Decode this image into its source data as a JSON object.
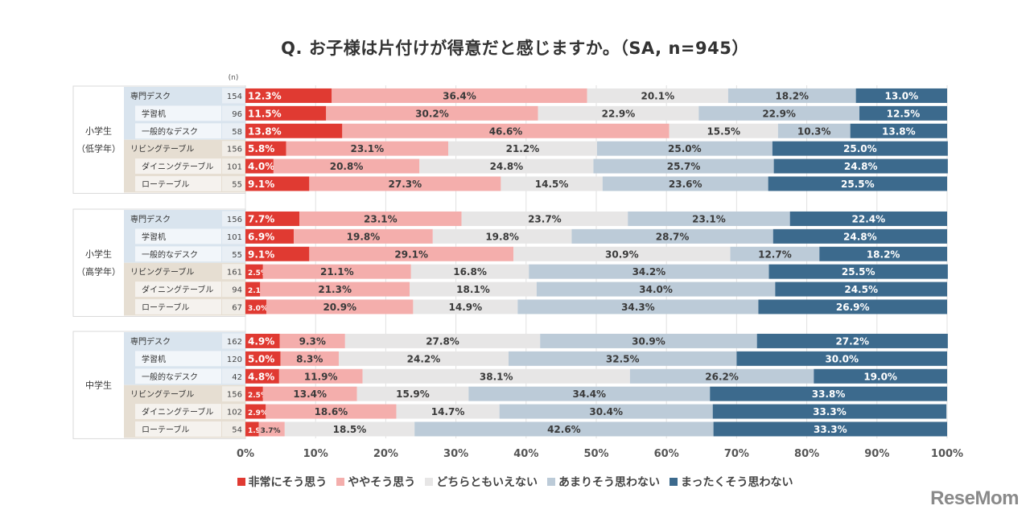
{
  "title": "Q. お子様は片付けが得意だと感じますか。（SA, n=945）",
  "n_header": "(n)",
  "logo": "ReseMom",
  "chart_data": {
    "type": "bar",
    "orientation": "horizontal",
    "stacked": "percent",
    "title": "Q. お子様は片付けが得意だと感じますか。（SA, n=945）",
    "xlabel": "",
    "ylabel": "",
    "xlim": [
      0,
      100
    ],
    "x_ticks": [
      "0%",
      "10%",
      "20%",
      "30%",
      "40%",
      "50%",
      "60%",
      "70%",
      "80%",
      "90%",
      "100%"
    ],
    "grid": true,
    "legend_position": "bottom",
    "legend": [
      {
        "name": "非常にそう思う",
        "color": "#e03a32"
      },
      {
        "name": "ややそう思う",
        "color": "#f4aeac"
      },
      {
        "name": "どちらともいえない",
        "color": "#e7e6e6"
      },
      {
        "name": "あまりそう思わない",
        "color": "#bccbd8"
      },
      {
        "name": "まったくそう思わない",
        "color": "#3c6a8d"
      }
    ],
    "label_colors": [
      "light",
      "dark",
      "dark",
      "dark",
      "light"
    ],
    "groups": [
      {
        "name": "小学生（低学年）",
        "name_lines": [
          "小学生",
          "（低学年）"
        ],
        "rows": [
          {
            "label": "専門デスク",
            "indent": false,
            "kind": "desk",
            "n": 154,
            "values": [
              12.3,
              36.4,
              20.1,
              18.2,
              13.0
            ]
          },
          {
            "label": "学習机",
            "indent": true,
            "kind": "desk",
            "n": 96,
            "values": [
              11.5,
              30.2,
              22.9,
              22.9,
              12.5
            ]
          },
          {
            "label": "一般的なデスク",
            "indent": true,
            "kind": "desk",
            "n": 58,
            "values": [
              13.8,
              46.6,
              15.5,
              10.3,
              13.8
            ]
          },
          {
            "label": "リビングテーブル",
            "indent": false,
            "kind": "table",
            "n": 156,
            "values": [
              5.8,
              23.1,
              21.2,
              25.0,
              25.0
            ]
          },
          {
            "label": "ダイニングテーブル",
            "indent": true,
            "kind": "table",
            "n": 101,
            "values": [
              4.0,
              20.8,
              24.8,
              25.7,
              24.8
            ]
          },
          {
            "label": "ローテーブル",
            "indent": true,
            "kind": "table",
            "n": 55,
            "values": [
              9.1,
              27.3,
              14.5,
              23.6,
              25.5
            ]
          }
        ]
      },
      {
        "name": "小学生（高学年）",
        "name_lines": [
          "小学生",
          "（高学年）"
        ],
        "rows": [
          {
            "label": "専門デスク",
            "indent": false,
            "kind": "desk",
            "n": 156,
            "values": [
              7.7,
              23.1,
              23.7,
              23.1,
              22.4
            ]
          },
          {
            "label": "学習机",
            "indent": true,
            "kind": "desk",
            "n": 101,
            "values": [
              6.9,
              19.8,
              19.8,
              28.7,
              24.8
            ]
          },
          {
            "label": "一般的なデスク",
            "indent": true,
            "kind": "desk",
            "n": 55,
            "values": [
              9.1,
              29.1,
              30.9,
              12.7,
              18.2
            ]
          },
          {
            "label": "リビングテーブル",
            "indent": false,
            "kind": "table",
            "n": 161,
            "values": [
              2.5,
              21.1,
              16.8,
              34.2,
              25.5
            ]
          },
          {
            "label": "ダイニングテーブル",
            "indent": true,
            "kind": "table",
            "n": 94,
            "values": [
              2.1,
              21.3,
              18.1,
              34.0,
              24.5
            ]
          },
          {
            "label": "ローテーブル",
            "indent": true,
            "kind": "table",
            "n": 67,
            "values": [
              3.0,
              20.9,
              14.9,
              34.3,
              26.9
            ]
          }
        ]
      },
      {
        "name": "中学生",
        "name_lines": [
          "中学生"
        ],
        "rows": [
          {
            "label": "専門デスク",
            "indent": false,
            "kind": "desk",
            "n": 162,
            "values": [
              4.9,
              9.3,
              27.8,
              30.9,
              27.2
            ]
          },
          {
            "label": "学習机",
            "indent": true,
            "kind": "desk",
            "n": 120,
            "values": [
              5.0,
              8.3,
              24.2,
              32.5,
              30.0
            ]
          },
          {
            "label": "一般的なデスク",
            "indent": true,
            "kind": "desk",
            "n": 42,
            "values": [
              4.8,
              11.9,
              38.1,
              26.2,
              19.0
            ]
          },
          {
            "label": "リビングテーブル",
            "indent": false,
            "kind": "table",
            "n": 156,
            "values": [
              2.5,
              13.4,
              15.9,
              34.4,
              33.8
            ]
          },
          {
            "label": "ダイニングテーブル",
            "indent": true,
            "kind": "table",
            "n": 102,
            "values": [
              2.9,
              18.6,
              14.7,
              30.4,
              33.3
            ]
          },
          {
            "label": "ローテーブル",
            "indent": true,
            "kind": "table",
            "n": 54,
            "values": [
              1.9,
              3.7,
              18.5,
              42.6,
              33.3
            ]
          }
        ]
      }
    ]
  }
}
